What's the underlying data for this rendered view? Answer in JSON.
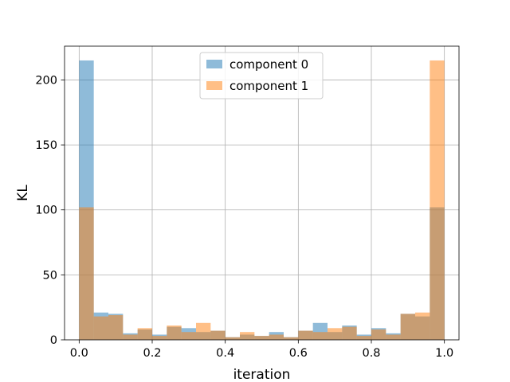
{
  "chart_data": {
    "type": "bar",
    "subtype": "histogram-overlay",
    "title": "",
    "xlabel": "iteration",
    "ylabel": "KL",
    "xlim": [
      -0.04,
      1.04
    ],
    "ylim": [
      0,
      226
    ],
    "xticks": [
      0.0,
      0.2,
      0.4,
      0.6,
      0.8,
      1.0
    ],
    "xtick_labels": [
      "0.0",
      "0.2",
      "0.4",
      "0.6",
      "0.8",
      "1.0"
    ],
    "yticks": [
      0,
      50,
      100,
      150,
      200
    ],
    "ytick_labels": [
      "0",
      "50",
      "100",
      "150",
      "200"
    ],
    "grid": true,
    "legend_position": "top-center",
    "bin_edges": [
      0,
      0.04,
      0.08,
      0.12,
      0.16,
      0.2,
      0.24,
      0.28,
      0.32,
      0.36,
      0.4,
      0.44,
      0.48,
      0.52,
      0.56,
      0.6,
      0.64,
      0.68,
      0.72,
      0.76,
      0.8,
      0.84,
      0.88,
      0.92,
      0.96,
      1.0
    ],
    "series": [
      {
        "name": "component 0",
        "color": "#1f77b4",
        "opacity": 0.5,
        "values": [
          215,
          21,
          20,
          5,
          8,
          4,
          10,
          9,
          6,
          7,
          2,
          4,
          3,
          6,
          2,
          7,
          13,
          6,
          11,
          4,
          9,
          5,
          20,
          18,
          102
        ]
      },
      {
        "name": "component 1",
        "color": "#ff7f0e",
        "opacity": 0.5,
        "values": [
          102,
          18,
          19,
          4,
          9,
          3,
          11,
          6,
          13,
          7,
          2,
          6,
          3,
          4,
          2,
          7,
          6,
          9,
          10,
          3,
          8,
          4,
          20,
          21,
          215
        ]
      }
    ]
  }
}
